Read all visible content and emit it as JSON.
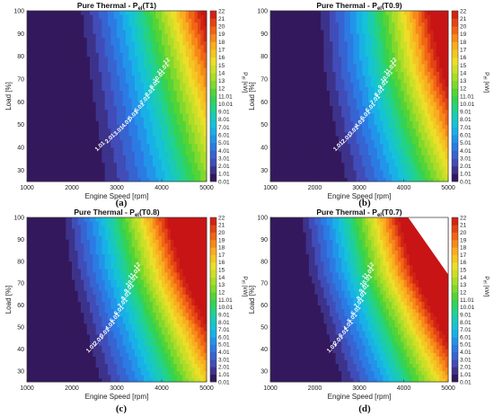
{
  "chart_data": [
    {
      "type": "heatmap",
      "panel_label": "(a)",
      "title": "Pure Thermal - P",
      "title_sub": "el",
      "title_suffix": "(T1)",
      "xlabel": "Engine Speed [rpm]",
      "ylabel": "Load [%]",
      "xlim": [
        1000,
        5000
      ],
      "ylim": [
        25,
        100
      ],
      "x_ticks": [
        "1000",
        "2000",
        "3000",
        "4000",
        "5000"
      ],
      "y_ticks": [
        "30",
        "40",
        "50",
        "60",
        "70",
        "80",
        "90",
        "100"
      ],
      "colorbar_label": "P",
      "colorbar_label_sub": "el",
      "colorbar_unit": "[kW]",
      "colorbar_ticks": [
        "0.01",
        "1.01",
        "2.01",
        "3.01",
        "4.01",
        "5.01",
        "6.01",
        "7.01",
        "8.01",
        "9.01",
        "10.01",
        "11.01",
        "12",
        "13",
        "14",
        "15",
        "16",
        "17",
        "18",
        "19",
        "20",
        "21",
        "22"
      ],
      "zero_speed": [
        2450,
        2300,
        2150,
        2000
      ],
      "gain": 1.0,
      "contour_labels": [
        "1.01",
        "2.01",
        "3.01",
        "4.01",
        "5.01",
        "6.01",
        "7.01",
        "8.01",
        "9.01",
        "10.01",
        "11.01",
        "12"
      ]
    },
    {
      "type": "heatmap",
      "panel_label": "(b)",
      "title": "Pure Thermal - P",
      "title_sub": "el",
      "title_suffix": "(T0.9)",
      "xlabel": "Engine Speed [rpm]",
      "ylabel": "Load [%]",
      "xlim": [
        1000,
        5000
      ],
      "ylim": [
        25,
        100
      ],
      "x_ticks": [
        "1000",
        "2000",
        "3000",
        "4000",
        "5000"
      ],
      "y_ticks": [
        "30",
        "40",
        "50",
        "60",
        "70",
        "80",
        "90",
        "100"
      ],
      "colorbar_label": "P",
      "colorbar_label_sub": "el",
      "colorbar_unit": "[kW]",
      "colorbar_ticks": [
        "0.01",
        "1.01",
        "2.01",
        "3.01",
        "4.01",
        "5.01",
        "6.01",
        "7.01",
        "8.01",
        "9.01",
        "10.01",
        "11.01",
        "12",
        "13",
        "14",
        "15",
        "16",
        "17",
        "18",
        "19",
        "20",
        "21",
        "22"
      ],
      "zero_speed": [
        2450,
        2200,
        2000,
        1950
      ],
      "gain": 1.15,
      "contour_labels": [
        "1.01",
        "2.01",
        "3.01",
        "4.01",
        "5.01",
        "6.01",
        "7.01",
        "8.01",
        "9.01",
        "10.01",
        "11.01",
        "12"
      ]
    },
    {
      "type": "heatmap",
      "panel_label": "(c)",
      "title": "Pure Thermal - P",
      "title_sub": "el",
      "title_suffix": "(T0.8)",
      "xlabel": "Engine Speed [rpm]",
      "ylabel": "Load [%]",
      "xlim": [
        1000,
        5000
      ],
      "ylim": [
        25,
        100
      ],
      "x_ticks": [
        "1000",
        "2000",
        "3000",
        "4000",
        "5000"
      ],
      "y_ticks": [
        "30",
        "40",
        "50",
        "60",
        "70",
        "80",
        "90",
        "100"
      ],
      "colorbar_label": "P",
      "colorbar_label_sub": "el",
      "colorbar_unit": "[kW]",
      "colorbar_ticks": [
        "0.01",
        "1.01",
        "2.01",
        "3.01",
        "4.01",
        "5.01",
        "6.01",
        "7.01",
        "8.01",
        "9.01",
        "10.01",
        "11.01",
        "12",
        "13",
        "14",
        "15",
        "16",
        "17",
        "18",
        "19",
        "20",
        "21",
        "22"
      ],
      "zero_speed": [
        2400,
        2100,
        1800,
        1650
      ],
      "gain": 1.25,
      "contour_labels": [
        "1.01",
        "2.01",
        "3.01",
        "4.01",
        "5.01",
        "6.01",
        "7.01",
        "8.01",
        "9.01",
        "10.01",
        "11.01",
        "12"
      ]
    },
    {
      "type": "heatmap",
      "panel_label": "(d)",
      "title": "Pure Thermal - P",
      "title_sub": "el",
      "title_suffix": "(T0.7)",
      "xlabel": "Engine Speed [rpm]",
      "ylabel": "Load [%]",
      "xlim": [
        1000,
        5000
      ],
      "ylim": [
        25,
        100
      ],
      "x_ticks": [
        "1000",
        "2000",
        "3000",
        "4000",
        "5000"
      ],
      "y_ticks": [
        "30",
        "40",
        "50",
        "60",
        "70",
        "80",
        "90",
        "100"
      ],
      "colorbar_label": "P",
      "colorbar_label_sub": "el",
      "colorbar_unit": "[kW]",
      "colorbar_ticks": [
        "0.01",
        "1.01",
        "2.01",
        "3.01",
        "4.01",
        "5.01",
        "6.01",
        "7.01",
        "8.01",
        "9.01",
        "10.01",
        "11.01",
        "12",
        "13",
        "14",
        "15",
        "16",
        "17",
        "18",
        "19",
        "20",
        "21",
        "22"
      ],
      "zero_speed": [
        2400,
        2050,
        1700,
        1550
      ],
      "gain": 1.35,
      "contour_labels": [
        "1.01",
        "2.01",
        "3.01",
        "4.01",
        "5.01",
        "6.01",
        "7.01",
        "8.01",
        "9.01",
        "10.01",
        "11.01",
        "12"
      ]
    }
  ]
}
